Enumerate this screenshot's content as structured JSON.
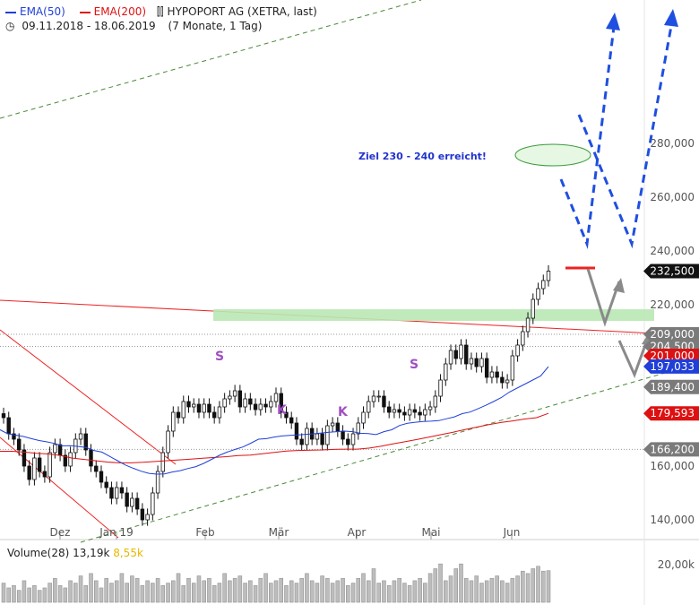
{
  "header": {
    "ema50_label": "EMA(50)",
    "ema200_label": "EMA(200)",
    "instrument": "HYPOPORT AG (XETRA, last)",
    "date_range": "09.11.2018 - 18.06.2019",
    "period": "(7 Monate, 1 Tag)"
  },
  "colors": {
    "ema50": "#1f3fd8",
    "ema200": "#dd1111",
    "trend_red": "#ee2222",
    "channel_green": "#4a8a3a",
    "zone_green": "#b9e8b4",
    "arrow_blue": "#1f4fe0",
    "arrow_grey": "#8a8a8a",
    "target_blue": "#2233cc",
    "pattern_purple": "#a050c0",
    "vol_bar": "#bdbdbd",
    "vol_highlight": "#e8b800"
  },
  "annotation": {
    "target_text": "Ziel 230 - 240 erreicht!",
    "pattern_labels": [
      "S",
      "K",
      "K",
      "S"
    ]
  },
  "chart_data": {
    "type": "candlestick",
    "title": "HYPOPORT AG (XETRA, last)",
    "x_labels": [
      "Dez",
      "Jan 19",
      "Feb",
      "Mär",
      "Apr",
      "Mai",
      "Jun"
    ],
    "y_ticks": [
      "140,000",
      "160,000",
      "220,000",
      "240,000",
      "260,000",
      "280,000"
    ],
    "y_range": [
      134,
      284
    ],
    "level_tags": [
      {
        "label": "232,500",
        "value": 232.5,
        "bg": "#111111"
      },
      {
        "label": "209,000",
        "value": 209.0,
        "bg": "#7a7a7a"
      },
      {
        "label": "204,500",
        "value": 204.5,
        "bg": "#7a7a7a"
      },
      {
        "label": "201,000",
        "value": 201.0,
        "bg": "#dd1111"
      },
      {
        "label": "197,033",
        "value": 197.033,
        "bg": "#1f3fd8"
      },
      {
        "label": "189,400",
        "value": 189.4,
        "bg": "#7a7a7a"
      },
      {
        "label": "179,593",
        "value": 179.593,
        "bg": "#dd1111"
      },
      {
        "label": "166,200",
        "value": 166.2,
        "bg": "#7a7a7a"
      }
    ],
    "close": [
      178,
      172,
      170,
      166,
      160,
      155,
      163,
      158,
      156,
      165,
      168,
      164,
      160,
      165,
      170,
      172,
      166,
      160,
      158,
      154,
      152,
      148,
      152,
      150,
      145,
      148,
      144,
      140,
      142,
      150,
      158,
      165,
      173,
      180,
      178,
      184,
      182,
      183,
      180,
      183,
      180,
      178,
      182,
      185,
      186,
      188,
      182,
      185,
      183,
      181,
      183,
      182,
      184,
      187,
      180,
      178,
      176,
      170,
      168,
      174,
      170,
      172,
      168,
      175,
      176,
      173,
      170,
      168,
      172,
      176,
      180,
      184,
      186,
      186,
      182,
      180,
      181,
      180,
      179,
      181,
      180,
      179,
      181,
      182,
      186,
      192,
      198,
      203,
      200,
      205,
      198,
      200,
      197,
      200,
      193,
      195,
      193,
      191,
      192,
      201,
      205,
      210,
      215,
      222,
      226,
      229,
      232.5
    ],
    "ema50": [
      173.5,
      172,
      171.5,
      171,
      170.2,
      169.5,
      169,
      168.4,
      167.5,
      167.6,
      167.3,
      166.9,
      165.8,
      165.2,
      163.6,
      162.0,
      160.4,
      159.2,
      158.1,
      157.3,
      157.0,
      157.1,
      157.8,
      158.3,
      159.1,
      159.8,
      161.0,
      162.5,
      164.0,
      165.2,
      166.2,
      167.1,
      168.5,
      170.0,
      170.2,
      170.8,
      171.2,
      171.4,
      171.6,
      171.8,
      172.0,
      172.3,
      172.6,
      172.8,
      173.0,
      172.8,
      172.2,
      172.1,
      171.7,
      172.8,
      173.5,
      175.1,
      175.9,
      176.3,
      176.6,
      176.7,
      176.9,
      177.6,
      178.3,
      179.5,
      180.1,
      181.3,
      182.6,
      184.0,
      185.5,
      187.5,
      189.0,
      190.5,
      192.0,
      193.5,
      197.0
    ],
    "ema200": [
      165.5,
      165.5,
      165.2,
      164.8,
      164.5,
      164.0,
      163.0,
      162.5,
      162.0,
      161.5,
      161.2,
      161.2,
      161.4,
      161.7,
      162.0,
      162.3,
      162.6,
      162.9,
      163.2,
      163.5,
      163.9,
      164.1,
      164.6,
      165.1,
      165.6,
      165.8,
      165.9,
      166.0,
      166.2,
      166.3,
      166.3,
      166.7,
      167.4,
      168.3,
      169.1,
      169.9,
      170.8,
      171.7,
      172.6,
      173.6,
      174.5,
      175.4,
      176.2,
      176.8,
      177.5,
      178.0,
      179.6
    ],
    "ema50_legend": "EMA(50)",
    "ema200_legend": "EMA(200)",
    "volume_label": "Volume(28)",
    "volume_value": "13,19k",
    "volume_avg": "8,55k",
    "volume_tick": "20,00k",
    "volume": [
      8,
      6,
      7,
      5,
      9,
      6,
      7,
      5,
      6,
      8,
      10,
      7,
      6,
      9,
      8,
      11,
      7,
      12,
      9,
      6,
      10,
      8,
      9,
      12,
      8,
      11,
      10,
      7,
      9,
      8,
      10,
      7,
      8,
      9,
      12,
      7,
      10,
      8,
      11,
      9,
      10,
      7,
      8,
      12,
      9,
      10,
      11,
      8,
      9,
      7,
      10,
      12,
      8,
      9,
      10,
      7,
      9,
      8,
      10,
      12,
      9,
      8,
      11,
      10,
      8,
      9,
      10,
      7,
      8,
      10,
      12,
      9,
      14,
      8,
      9,
      7,
      9,
      10,
      8,
      7,
      9,
      10,
      8,
      12,
      14,
      16,
      9,
      11,
      14,
      16,
      10,
      9,
      11,
      8,
      9,
      10,
      11,
      9,
      8,
      10,
      11,
      13,
      12,
      14,
      15,
      13,
      13.19
    ],
    "volume_range": [
      0,
      25
    ]
  }
}
